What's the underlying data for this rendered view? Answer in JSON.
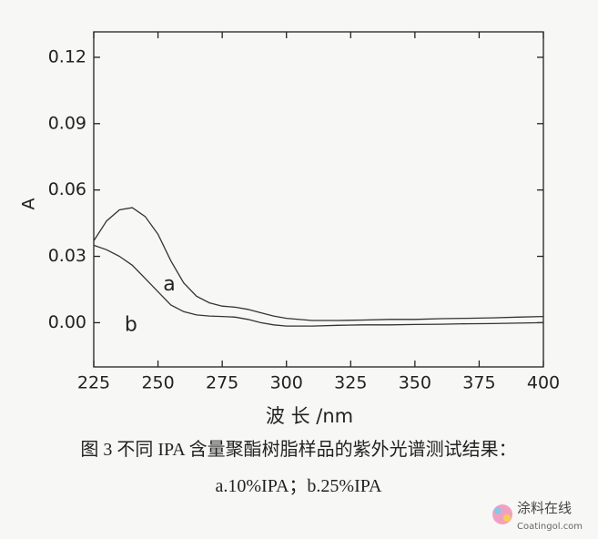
{
  "chart_data": {
    "type": "line",
    "xlabel": "波 长 /nm",
    "ylabel": "A",
    "caption": [
      "图 3 不同 IPA 含量聚酯树脂样品的紫外光谱测试结果：",
      "a.10%IPA；b.25%IPA"
    ],
    "x": [
      225,
      230,
      235,
      240,
      245,
      250,
      255,
      260,
      265,
      270,
      275,
      280,
      285,
      290,
      295,
      300,
      310,
      320,
      330,
      340,
      350,
      360,
      370,
      380,
      390,
      400
    ],
    "series": [
      {
        "name": "a",
        "color": "#333333",
        "values": [
          0.037,
          0.046,
          0.051,
          0.052,
          0.048,
          0.04,
          0.028,
          0.018,
          0.012,
          0.009,
          0.0075,
          0.007,
          0.006,
          0.0045,
          0.003,
          0.002,
          0.001,
          0.001,
          0.0012,
          0.0015,
          0.0015,
          0.0018,
          0.002,
          0.0022,
          0.0025,
          0.0028
        ]
      },
      {
        "name": "b",
        "color": "#333333",
        "values": [
          0.035,
          0.033,
          0.03,
          0.026,
          0.02,
          0.014,
          0.008,
          0.005,
          0.0035,
          0.003,
          0.0028,
          0.0025,
          0.0015,
          0.0,
          -0.001,
          -0.0015,
          -0.0015,
          -0.0012,
          -0.001,
          -0.001,
          -0.0008,
          -0.0007,
          -0.0005,
          -0.0004,
          -0.0002,
          0
        ]
      }
    ],
    "xlim": [
      225,
      400
    ],
    "xticks": [
      225,
      250,
      275,
      300,
      325,
      350,
      375,
      400
    ],
    "ylim": [
      -0.02,
      0.1315
    ],
    "yticks": [
      {
        "value": 0,
        "label": "0.00"
      },
      0.03,
      0.06,
      0.09,
      0.12
    ],
    "grid": false
  },
  "watermark": {
    "title": "涂料在线",
    "url": "Coatingol.com"
  }
}
